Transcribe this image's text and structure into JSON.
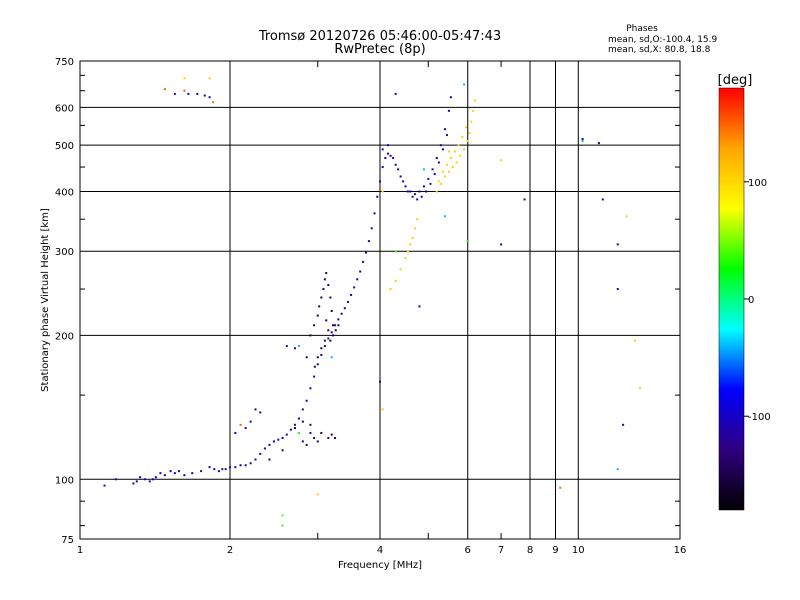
{
  "chart_data": {
    "type": "scatter",
    "title": "Tromsø 20120726 05:46:00-05:47:43",
    "subtitle": "RwPretec (8p)",
    "xlabel": "Frequency [MHz]",
    "ylabel": "Stationary phase Virtual Height [km]",
    "x_scale": "log",
    "y_scale": "log",
    "xlim": [
      1,
      16
    ],
    "ylim": [
      75,
      750
    ],
    "grid": true,
    "x_ticks": [
      1,
      2,
      4,
      6,
      8,
      9,
      10,
      16
    ],
    "x_tick_labels": [
      "1",
      "2",
      "4",
      "6",
      "8",
      "9",
      "10",
      "16"
    ],
    "y_ticks": [
      75,
      100,
      200,
      300,
      400,
      500,
      600,
      750
    ],
    "y_tick_labels": [
      "75",
      "100",
      "200",
      "300",
      "400",
      "500",
      "600",
      "750"
    ],
    "x_minor_ticks": [
      3,
      5,
      7
    ],
    "x_minor_labels": [
      "",
      "",
      "7"
    ],
    "stats": {
      "header": "Phases",
      "line_o": "mean, sd,O:-100.4, 15.9",
      "line_x": "mean, sd,X:  80.8, 18.8"
    },
    "colorbar": {
      "label": "[deg]",
      "range": [
        -180,
        180
      ],
      "ticks": [
        100,
        0,
        -100
      ],
      "tick_labels": [
        "100",
        "0",
        "-100"
      ],
      "colors": [
        "#ff0000",
        "#ffa500",
        "#ffff00",
        "#00ff00",
        "#00ffff",
        "#0000ff",
        "#300080",
        "#000000"
      ]
    },
    "series": [
      {
        "phase": -110,
        "points": [
          [
            1.12,
            97
          ],
          [
            1.18,
            100
          ],
          [
            1.28,
            98
          ],
          [
            1.3,
            99
          ],
          [
            1.32,
            101
          ],
          [
            1.35,
            100
          ],
          [
            1.38,
            99
          ],
          [
            1.4,
            100
          ],
          [
            1.42,
            101
          ],
          [
            1.45,
            103
          ],
          [
            1.48,
            102
          ],
          [
            1.52,
            104
          ],
          [
            1.55,
            103
          ],
          [
            1.58,
            104
          ],
          [
            1.62,
            102
          ],
          [
            1.68,
            103
          ],
          [
            1.75,
            104
          ],
          [
            1.82,
            106
          ],
          [
            1.86,
            105
          ],
          [
            1.9,
            104
          ],
          [
            1.93,
            105
          ],
          [
            1.96,
            105
          ],
          [
            2.0,
            106
          ],
          [
            2.05,
            106
          ],
          [
            2.1,
            107
          ],
          [
            2.15,
            107
          ],
          [
            2.2,
            108
          ],
          [
            2.25,
            110
          ],
          [
            2.3,
            113
          ],
          [
            2.35,
            116
          ],
          [
            2.4,
            118
          ],
          [
            2.45,
            120
          ],
          [
            2.5,
            121
          ],
          [
            2.55,
            122
          ],
          [
            2.6,
            124
          ],
          [
            2.65,
            127
          ],
          [
            2.7,
            130
          ],
          [
            2.75,
            134
          ],
          [
            2.8,
            140
          ],
          [
            2.85,
            146
          ],
          [
            2.9,
            155
          ],
          [
            2.95,
            164
          ],
          [
            3.0,
            174
          ],
          [
            3.05,
            182
          ],
          [
            3.1,
            190
          ],
          [
            3.15,
            197
          ],
          [
            3.2,
            203
          ],
          [
            3.25,
            210
          ],
          [
            3.3,
            216
          ],
          [
            3.35,
            222
          ],
          [
            3.4,
            228
          ],
          [
            3.45,
            235
          ],
          [
            3.5,
            243
          ],
          [
            3.55,
            252
          ],
          [
            3.6,
            262
          ],
          [
            3.65,
            272
          ],
          [
            3.7,
            285
          ],
          [
            3.75,
            298
          ],
          [
            3.8,
            315
          ],
          [
            3.85,
            335
          ],
          [
            3.9,
            360
          ],
          [
            3.95,
            390
          ],
          [
            4.0,
            420
          ],
          [
            4.05,
            450
          ],
          [
            4.1,
            470
          ],
          [
            4.15,
            480
          ],
          [
            4.2,
            475
          ],
          [
            4.3,
            455
          ],
          [
            4.4,
            430
          ],
          [
            4.5,
            410
          ],
          [
            4.6,
            400
          ],
          [
            4.7,
            395
          ],
          [
            4.8,
            400
          ],
          [
            4.9,
            410
          ],
          [
            5.0,
            425
          ],
          [
            5.1,
            445
          ],
          [
            5.2,
            470
          ],
          [
            5.3,
            500
          ],
          [
            5.4,
            540
          ],
          [
            5.5,
            590
          ],
          [
            5.55,
            630
          ],
          [
            4.05,
            490
          ],
          [
            4.15,
            500
          ],
          [
            4.25,
            470
          ],
          [
            4.35,
            445
          ],
          [
            4.45,
            420
          ],
          [
            4.55,
            400
          ],
          [
            4.65,
            390
          ],
          [
            4.75,
            385
          ],
          [
            4.85,
            390
          ],
          [
            4.95,
            400
          ],
          [
            5.05,
            415
          ],
          [
            5.15,
            435
          ],
          [
            5.25,
            460
          ],
          [
            5.35,
            490
          ],
          [
            5.45,
            525
          ],
          [
            1.55,
            640
          ],
          [
            1.65,
            640
          ],
          [
            1.72,
            640
          ],
          [
            1.78,
            635
          ],
          [
            1.82,
            630
          ],
          [
            2.05,
            125
          ],
          [
            2.15,
            128
          ],
          [
            2.2,
            132
          ],
          [
            2.25,
            140
          ],
          [
            2.3,
            138
          ],
          [
            2.6,
            190
          ],
          [
            2.7,
            188
          ],
          [
            2.9,
            125
          ],
          [
            2.95,
            122
          ],
          [
            3.0,
            120
          ],
          [
            4.3,
            640
          ],
          [
            6.0,
            315
          ],
          [
            7.0,
            310
          ],
          [
            7.8,
            385
          ],
          [
            10.2,
            515
          ],
          [
            11.0,
            505
          ],
          [
            12.0,
            310
          ],
          [
            12.0,
            250
          ],
          [
            12.3,
            130
          ],
          [
            11.2,
            385
          ],
          [
            4.0,
            160
          ],
          [
            4.8,
            230
          ]
        ]
      },
      {
        "phase": -145,
        "points": [
          [
            2.4,
            110
          ],
          [
            2.55,
            115
          ],
          [
            2.7,
            128
          ],
          [
            2.8,
            132
          ],
          [
            2.85,
            180
          ],
          [
            2.9,
            200
          ],
          [
            2.95,
            210
          ],
          [
            3.0,
            220
          ],
          [
            3.02,
            230
          ],
          [
            3.05,
            240
          ],
          [
            3.08,
            250
          ],
          [
            3.1,
            262
          ],
          [
            3.12,
            270
          ],
          [
            3.15,
            255
          ],
          [
            3.18,
            240
          ],
          [
            3.2,
            225
          ],
          [
            3.22,
            210
          ],
          [
            3.1,
            195
          ],
          [
            3.05,
            188
          ],
          [
            3.0,
            180
          ],
          [
            2.96,
            172
          ],
          [
            3.12,
            215
          ],
          [
            3.15,
            205
          ],
          [
            3.18,
            195
          ],
          [
            3.22,
            200
          ],
          [
            3.26,
            205
          ],
          [
            3.3,
            210
          ],
          [
            2.75,
            125
          ],
          [
            2.8,
            120
          ],
          [
            2.85,
            118
          ],
          [
            2.9,
            130
          ],
          [
            3.05,
            125
          ],
          [
            3.15,
            122
          ],
          [
            3.2,
            124
          ],
          [
            3.25,
            122
          ]
        ]
      },
      {
        "phase": 105,
        "points": [
          [
            4.2,
            250
          ],
          [
            4.3,
            260
          ],
          [
            4.4,
            275
          ],
          [
            4.5,
            290
          ],
          [
            4.55,
            300
          ],
          [
            4.6,
            310
          ],
          [
            4.65,
            320
          ],
          [
            4.7,
            335
          ],
          [
            4.75,
            350
          ],
          [
            5.2,
            400
          ],
          [
            5.3,
            415
          ],
          [
            5.4,
            430
          ],
          [
            5.5,
            440
          ],
          [
            5.6,
            450
          ],
          [
            5.7,
            460
          ],
          [
            5.8,
            475
          ],
          [
            5.9,
            490
          ],
          [
            6.0,
            510
          ],
          [
            6.05,
            530
          ],
          [
            6.1,
            560
          ],
          [
            6.15,
            590
          ],
          [
            6.2,
            620
          ],
          [
            5.25,
            420
          ],
          [
            5.35,
            440
          ],
          [
            5.45,
            455
          ],
          [
            5.55,
            470
          ],
          [
            5.65,
            485
          ],
          [
            5.75,
            500
          ],
          [
            5.85,
            520
          ],
          [
            5.95,
            545
          ],
          [
            1.62,
            690
          ],
          [
            1.82,
            690
          ],
          [
            4.05,
            400
          ],
          [
            5.5,
            485
          ],
          [
            7.0,
            465
          ],
          [
            12.5,
            355
          ],
          [
            13.0,
            195
          ],
          [
            13.3,
            155
          ],
          [
            4.05,
            140
          ],
          [
            3.0,
            93
          ]
        ]
      },
      {
        "phase": 40,
        "points": [
          [
            2.55,
            80
          ],
          [
            2.55,
            84
          ],
          [
            6.0,
            315
          ],
          [
            4.3,
            300
          ],
          [
            2.75,
            125
          ]
        ]
      },
      {
        "phase": -40,
        "points": [
          [
            5.9,
            670
          ],
          [
            5.4,
            355
          ],
          [
            3.2,
            180
          ],
          [
            10.2,
            510
          ],
          [
            12.0,
            105
          ],
          [
            2.75,
            190
          ],
          [
            4.9,
            445
          ]
        ]
      },
      {
        "phase": 150,
        "points": [
          [
            1.48,
            655
          ],
          [
            1.62,
            650
          ],
          [
            9.2,
            96
          ],
          [
            1.85,
            615
          ],
          [
            2.1,
            130
          ]
        ]
      }
    ]
  }
}
